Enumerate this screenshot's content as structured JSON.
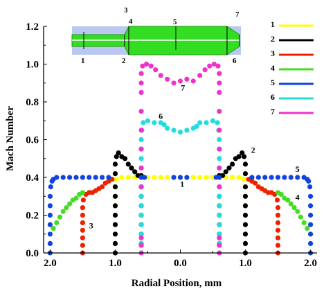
{
  "chart_data": {
    "type": "scatter",
    "xlabel": "Radial Position, mm",
    "ylabel": "Mach Number",
    "xlim": [
      -2.1,
      2.1
    ],
    "ylim": [
      0,
      1.2
    ],
    "x_ticks": [
      {
        "value": -2.0,
        "label": "2.0"
      },
      {
        "value": -1.0,
        "label": "1.0"
      },
      {
        "value": 0.0,
        "label": "0.0"
      },
      {
        "value": 1.0,
        "label": "1.0"
      },
      {
        "value": 2.0,
        "label": "2.0"
      }
    ],
    "y_ticks": [
      {
        "value": 0.0,
        "label": "0.0"
      },
      {
        "value": 0.2,
        "label": "0.2"
      },
      {
        "value": 0.4,
        "label": "0.4"
      },
      {
        "value": 0.6,
        "label": "0.6"
      },
      {
        "value": 0.8,
        "label": "0.8"
      },
      {
        "value": 1.0,
        "label": "1.0"
      },
      {
        "value": 1.2,
        "label": "1.2"
      }
    ],
    "grid": false,
    "legend_position": "top-right",
    "series": [
      {
        "name": "1",
        "color": "#ffff00",
        "points": [
          [
            -1.0,
            0.0
          ],
          [
            -1.0,
            0.05
          ],
          [
            -1.0,
            0.1
          ],
          [
            -1.0,
            0.15
          ],
          [
            -1.0,
            0.2
          ],
          [
            -1.0,
            0.25
          ],
          [
            -1.0,
            0.3
          ],
          [
            -1.0,
            0.35
          ],
          [
            -0.98,
            0.39
          ],
          [
            -0.9,
            0.4
          ],
          [
            -0.8,
            0.4
          ],
          [
            -0.7,
            0.4
          ],
          [
            -0.6,
            0.4
          ],
          [
            -0.5,
            0.4
          ],
          [
            -0.4,
            0.4
          ],
          [
            -0.3,
            0.4
          ],
          [
            -0.2,
            0.4
          ],
          [
            -0.1,
            0.4
          ],
          [
            0.0,
            0.4
          ],
          [
            0.1,
            0.4
          ],
          [
            0.2,
            0.4
          ],
          [
            0.3,
            0.4
          ],
          [
            0.4,
            0.4
          ],
          [
            0.5,
            0.4
          ],
          [
            0.6,
            0.4
          ],
          [
            0.7,
            0.4
          ],
          [
            0.8,
            0.4
          ],
          [
            0.9,
            0.4
          ],
          [
            0.98,
            0.39
          ],
          [
            1.0,
            0.35
          ],
          [
            1.0,
            0.3
          ],
          [
            1.0,
            0.25
          ],
          [
            1.0,
            0.2
          ],
          [
            1.0,
            0.15
          ],
          [
            1.0,
            0.1
          ],
          [
            1.0,
            0.05
          ],
          [
            1.0,
            0.0
          ]
        ]
      },
      {
        "name": "2",
        "color": "#000000",
        "points": [
          [
            -1.0,
            0.0
          ],
          [
            -1.0,
            0.05
          ],
          [
            -1.0,
            0.1
          ],
          [
            -1.0,
            0.15
          ],
          [
            -1.0,
            0.2
          ],
          [
            -1.0,
            0.25
          ],
          [
            -1.0,
            0.3
          ],
          [
            -1.0,
            0.35
          ],
          [
            -1.0,
            0.42
          ],
          [
            -1.0,
            0.47
          ],
          [
            -0.98,
            0.51
          ],
          [
            -0.95,
            0.53
          ],
          [
            -0.9,
            0.51
          ],
          [
            -0.85,
            0.5
          ],
          [
            -0.8,
            0.47
          ],
          [
            -0.75,
            0.45
          ],
          [
            -0.7,
            0.43
          ],
          [
            -0.65,
            0.41
          ],
          [
            -0.6,
            0.41
          ],
          [
            -0.6,
            0.35
          ],
          [
            -0.6,
            0.3
          ],
          [
            -0.6,
            0.25
          ],
          [
            -0.6,
            0.2
          ],
          [
            -0.6,
            0.15
          ],
          [
            -0.6,
            0.1
          ],
          [
            -0.6,
            0.05
          ],
          [
            0.6,
            0.05
          ],
          [
            0.6,
            0.1
          ],
          [
            0.6,
            0.15
          ],
          [
            0.6,
            0.2
          ],
          [
            0.6,
            0.25
          ],
          [
            0.6,
            0.3
          ],
          [
            0.6,
            0.35
          ],
          [
            0.6,
            0.41
          ],
          [
            0.65,
            0.41
          ],
          [
            0.7,
            0.43
          ],
          [
            0.75,
            0.45
          ],
          [
            0.8,
            0.47
          ],
          [
            0.85,
            0.5
          ],
          [
            0.9,
            0.51
          ],
          [
            0.95,
            0.53
          ],
          [
            0.98,
            0.51
          ],
          [
            1.0,
            0.47
          ],
          [
            1.0,
            0.42
          ],
          [
            1.0,
            0.35
          ],
          [
            1.0,
            0.3
          ],
          [
            1.0,
            0.25
          ],
          [
            1.0,
            0.2
          ],
          [
            1.0,
            0.15
          ],
          [
            1.0,
            0.1
          ],
          [
            1.0,
            0.05
          ],
          [
            1.0,
            0.0
          ]
        ]
      },
      {
        "name": "3",
        "color": "#ee2200",
        "points": [
          [
            -1.5,
            0.0
          ],
          [
            -1.5,
            0.04
          ],
          [
            -1.5,
            0.08
          ],
          [
            -1.5,
            0.12
          ],
          [
            -1.5,
            0.16
          ],
          [
            -1.5,
            0.2
          ],
          [
            -1.5,
            0.24
          ],
          [
            -1.49,
            0.28
          ],
          [
            -1.45,
            0.31
          ],
          [
            -1.4,
            0.32
          ],
          [
            -1.35,
            0.32
          ],
          [
            -1.3,
            0.33
          ],
          [
            -1.25,
            0.34
          ],
          [
            -1.2,
            0.35
          ],
          [
            -1.15,
            0.37
          ],
          [
            -1.1,
            0.38
          ],
          [
            -1.05,
            0.39
          ],
          [
            1.05,
            0.39
          ],
          [
            1.1,
            0.38
          ],
          [
            1.15,
            0.37
          ],
          [
            1.2,
            0.35
          ],
          [
            1.25,
            0.34
          ],
          [
            1.3,
            0.33
          ],
          [
            1.35,
            0.32
          ],
          [
            1.4,
            0.32
          ],
          [
            1.45,
            0.31
          ],
          [
            1.49,
            0.28
          ],
          [
            1.5,
            0.24
          ],
          [
            1.5,
            0.2
          ],
          [
            1.5,
            0.16
          ],
          [
            1.5,
            0.12
          ],
          [
            1.5,
            0.08
          ],
          [
            1.5,
            0.04
          ],
          [
            1.5,
            0.0
          ]
        ]
      },
      {
        "name": "4",
        "color": "#44dd22",
        "points": [
          [
            -1.95,
            0.13
          ],
          [
            -1.9,
            0.16
          ],
          [
            -1.85,
            0.19
          ],
          [
            -1.8,
            0.22
          ],
          [
            -1.75,
            0.24
          ],
          [
            -1.7,
            0.26
          ],
          [
            -1.65,
            0.28
          ],
          [
            -1.6,
            0.29
          ],
          [
            -1.55,
            0.31
          ],
          [
            -1.5,
            0.32
          ],
          [
            1.5,
            0.32
          ],
          [
            1.55,
            0.31
          ],
          [
            1.6,
            0.29
          ],
          [
            1.65,
            0.28
          ],
          [
            1.7,
            0.26
          ],
          [
            1.75,
            0.24
          ],
          [
            1.8,
            0.22
          ],
          [
            1.85,
            0.19
          ],
          [
            1.9,
            0.16
          ],
          [
            1.95,
            0.13
          ]
        ]
      },
      {
        "name": "5",
        "color": "#1144dd",
        "points": [
          [
            -2.0,
            0.0
          ],
          [
            -2.0,
            0.05
          ],
          [
            -2.0,
            0.1
          ],
          [
            -2.0,
            0.15
          ],
          [
            -2.0,
            0.2
          ],
          [
            -2.0,
            0.25
          ],
          [
            -2.0,
            0.3
          ],
          [
            -1.99,
            0.35
          ],
          [
            -1.97,
            0.38
          ],
          [
            -1.95,
            0.39
          ],
          [
            -1.9,
            0.4
          ],
          [
            -1.8,
            0.4
          ],
          [
            -1.7,
            0.4
          ],
          [
            -1.6,
            0.4
          ],
          [
            -1.5,
            0.4
          ],
          [
            -1.4,
            0.4
          ],
          [
            -1.3,
            0.4
          ],
          [
            -1.2,
            0.4
          ],
          [
            -1.1,
            0.4
          ],
          [
            -0.6,
            0.4
          ],
          [
            -0.55,
            0.4
          ],
          [
            -0.1,
            0.4
          ],
          [
            0.0,
            0.4
          ],
          [
            0.1,
            0.4
          ],
          [
            0.55,
            0.4
          ],
          [
            0.6,
            0.4
          ],
          [
            1.1,
            0.4
          ],
          [
            1.2,
            0.4
          ],
          [
            1.3,
            0.4
          ],
          [
            1.4,
            0.4
          ],
          [
            1.5,
            0.4
          ],
          [
            1.6,
            0.4
          ],
          [
            1.7,
            0.4
          ],
          [
            1.8,
            0.4
          ],
          [
            1.9,
            0.4
          ],
          [
            1.95,
            0.39
          ],
          [
            1.97,
            0.38
          ],
          [
            1.99,
            0.35
          ],
          [
            2.0,
            0.3
          ],
          [
            2.0,
            0.25
          ],
          [
            2.0,
            0.2
          ],
          [
            2.0,
            0.15
          ],
          [
            2.0,
            0.1
          ],
          [
            2.0,
            0.05
          ],
          [
            2.0,
            0.0
          ]
        ]
      },
      {
        "name": "6",
        "color": "#22dddd",
        "points": [
          [
            -0.6,
            0.05
          ],
          [
            -0.6,
            0.1
          ],
          [
            -0.6,
            0.15
          ],
          [
            -0.6,
            0.2
          ],
          [
            -0.6,
            0.25
          ],
          [
            -0.6,
            0.3
          ],
          [
            -0.6,
            0.35
          ],
          [
            -0.6,
            0.45
          ],
          [
            -0.6,
            0.5
          ],
          [
            -0.6,
            0.55
          ],
          [
            -0.6,
            0.6
          ],
          [
            -0.59,
            0.65
          ],
          [
            -0.57,
            0.69
          ],
          [
            -0.5,
            0.7
          ],
          [
            -0.4,
            0.69
          ],
          [
            -0.3,
            0.69
          ],
          [
            -0.25,
            0.68
          ],
          [
            -0.2,
            0.66
          ],
          [
            -0.1,
            0.65
          ],
          [
            0.0,
            0.64
          ],
          [
            0.1,
            0.65
          ],
          [
            0.2,
            0.66
          ],
          [
            0.25,
            0.67
          ],
          [
            0.3,
            0.69
          ],
          [
            0.4,
            0.69
          ],
          [
            0.5,
            0.7
          ],
          [
            0.57,
            0.69
          ],
          [
            0.59,
            0.65
          ],
          [
            0.6,
            0.6
          ],
          [
            0.6,
            0.55
          ],
          [
            0.6,
            0.5
          ],
          [
            0.6,
            0.45
          ],
          [
            0.6,
            0.35
          ],
          [
            0.6,
            0.3
          ],
          [
            0.6,
            0.25
          ],
          [
            0.6,
            0.2
          ],
          [
            0.6,
            0.15
          ],
          [
            0.6,
            0.1
          ],
          [
            0.6,
            0.05
          ]
        ]
      },
      {
        "name": "7",
        "color": "#ee33cc",
        "points": [
          [
            -0.6,
            0.0
          ],
          [
            -0.6,
            0.04
          ],
          [
            -0.6,
            0.08
          ],
          [
            -0.6,
            0.35
          ],
          [
            -0.6,
            0.45
          ],
          [
            -0.6,
            0.55
          ],
          [
            -0.6,
            0.65
          ],
          [
            -0.6,
            0.75
          ],
          [
            -0.6,
            0.85
          ],
          [
            -0.6,
            0.9
          ],
          [
            -0.6,
            0.95
          ],
          [
            -0.58,
            0.99
          ],
          [
            -0.52,
            1.0
          ],
          [
            -0.45,
            0.99
          ],
          [
            -0.38,
            0.97
          ],
          [
            -0.3,
            0.94
          ],
          [
            -0.2,
            0.92
          ],
          [
            -0.1,
            0.9
          ],
          [
            0.0,
            0.91
          ],
          [
            0.1,
            0.92
          ],
          [
            0.2,
            0.91
          ],
          [
            0.3,
            0.94
          ],
          [
            0.38,
            0.97
          ],
          [
            0.45,
            0.99
          ],
          [
            0.52,
            1.0
          ],
          [
            0.58,
            0.99
          ],
          [
            0.6,
            0.95
          ],
          [
            0.6,
            0.9
          ],
          [
            0.6,
            0.85
          ],
          [
            0.6,
            0.75
          ],
          [
            0.6,
            0.65
          ],
          [
            0.6,
            0.55
          ],
          [
            0.6,
            0.45
          ],
          [
            0.6,
            0.35
          ],
          [
            0.6,
            0.08
          ],
          [
            0.6,
            0.04
          ],
          [
            0.6,
            0.0
          ]
        ]
      }
    ],
    "annotations": [
      {
        "text": "1",
        "x": 0.03,
        "y": 0.35
      },
      {
        "text": "2",
        "x": 1.12,
        "y": 0.53
      },
      {
        "text": "3",
        "x": -1.37,
        "y": 0.13
      },
      {
        "text": "4",
        "x": 1.8,
        "y": 0.28
      },
      {
        "text": "5",
        "x": 1.8,
        "y": 0.43
      },
      {
        "text": "6",
        "x": -0.3,
        "y": 0.71
      },
      {
        "text": "7",
        "x": 0.04,
        "y": 0.86
      }
    ],
    "inset_labels": [
      "1",
      "2",
      "3",
      "4",
      "5",
      "6",
      "7"
    ]
  }
}
